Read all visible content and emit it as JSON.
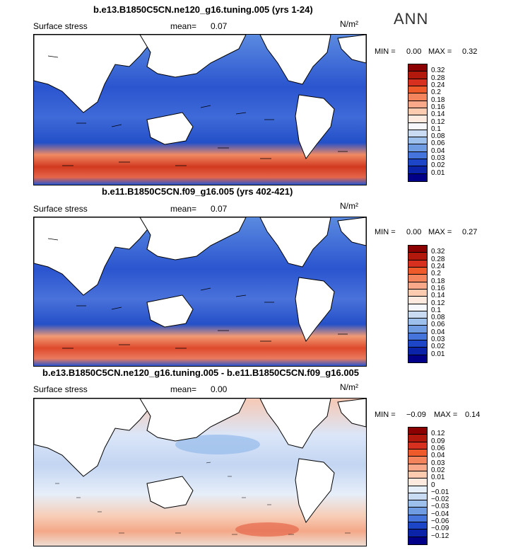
{
  "season": "ANN",
  "panels": [
    {
      "title": "b.e13.B1850C5CN.ne120_g16.tuning.005 (yrs 1-24)",
      "variable": "Surface stress",
      "mean_label": "mean=",
      "mean_value": "0.07",
      "units": "N/m²",
      "min_label": "MIN =",
      "min_value": "0.00",
      "max_label": "MAX =",
      "max_value": "0.32",
      "colorbar": {
        "labels": [
          "0.32",
          "0.28",
          "0.24",
          "0.2",
          "0.18",
          "0.16",
          "0.14",
          "0.12",
          "0.1",
          "0.08",
          "0.06",
          "0.04",
          "0.03",
          "0.02",
          "0.01"
        ],
        "colors": [
          "#8b0000",
          "#b2180c",
          "#d7301f",
          "#ef5a2a",
          "#f4845c",
          "#f9a98a",
          "#fccbb0",
          "#fde9dd",
          "#f5f7fb",
          "#c8dbf3",
          "#9cbfec",
          "#6f9be3",
          "#4474dc",
          "#1c46c7",
          "#0a23a8",
          "#000088"
        ]
      }
    },
    {
      "title": "b.e11.B1850C5CN.f09_g16.005 (yrs 402-421)",
      "variable": "Surface stress",
      "mean_label": "mean=",
      "mean_value": "0.07",
      "units": "N/m²",
      "min_label": "MIN =",
      "min_value": "0.00",
      "max_label": "MAX =",
      "max_value": "0.27",
      "colorbar": {
        "labels": [
          "0.32",
          "0.28",
          "0.24",
          "0.2",
          "0.18",
          "0.16",
          "0.14",
          "0.12",
          "0.1",
          "0.08",
          "0.06",
          "0.04",
          "0.03",
          "0.02",
          "0.01"
        ],
        "colors": [
          "#8b0000",
          "#b2180c",
          "#d7301f",
          "#ef5a2a",
          "#f4845c",
          "#f9a98a",
          "#fccbb0",
          "#fde9dd",
          "#f5f7fb",
          "#c8dbf3",
          "#9cbfec",
          "#6f9be3",
          "#4474dc",
          "#1c46c7",
          "#0a23a8",
          "#000088"
        ]
      }
    },
    {
      "title": "b.e13.B1850C5CN.ne120_g16.tuning.005 - b.e11.B1850C5CN.f09_g16.005",
      "variable": "Surface stress",
      "mean_label": "mean=",
      "mean_value": "0.00",
      "units": "N/m²",
      "min_label": "MIN =",
      "min_value": "−0.09",
      "max_label": "MAX =",
      "max_value": "0.14",
      "colorbar": {
        "labels": [
          "0.12",
          "0.09",
          "0.06",
          "0.04",
          "0.03",
          "0.02",
          "0.01",
          "0",
          "−0.01",
          "−0.02",
          "−0.03",
          "−0.04",
          "−0.06",
          "−0.09",
          "−0.12"
        ],
        "colors": [
          "#8b0000",
          "#b2180c",
          "#d7301f",
          "#ef5a2a",
          "#f4845c",
          "#f9a98a",
          "#fccbb0",
          "#fde9dd",
          "#e6eef9",
          "#c8dbf3",
          "#9cbfec",
          "#6f9be3",
          "#4474dc",
          "#1c46c7",
          "#0a23a8",
          "#000088"
        ]
      }
    }
  ]
}
